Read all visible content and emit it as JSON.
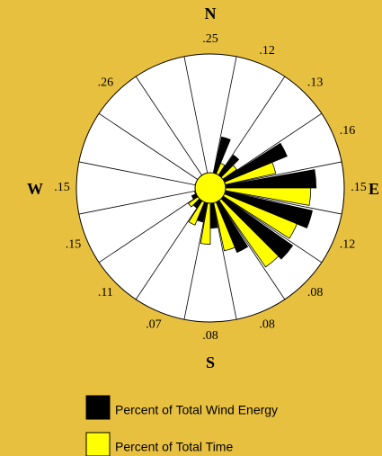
{
  "chart_data": {
    "type": "windrose",
    "compass": [
      "N",
      "E",
      "S",
      "W"
    ],
    "labels": [
      ".25",
      ".12",
      ".13",
      ".16",
      ".15",
      ".12",
      ".08",
      ".08",
      ".08",
      ".07",
      ".11",
      ".15",
      ".15",
      null,
      ".26",
      null
    ],
    "rlim": [
      0,
      100
    ],
    "series": [
      {
        "name": "Percent of Total Wind Energy",
        "color": "#000000",
        "values": [
          8,
          39,
          30,
          62,
          79,
          78,
          75,
          52,
          30,
          26,
          18,
          15,
          10,
          8,
          6,
          6
        ]
      },
      {
        "name": "Percent of Total Time",
        "color": "#ffff00",
        "values": [
          8,
          20,
          24,
          50,
          75,
          70,
          72,
          48,
          42,
          30,
          20,
          12,
          8,
          5,
          5,
          5
        ]
      }
    ]
  }
}
